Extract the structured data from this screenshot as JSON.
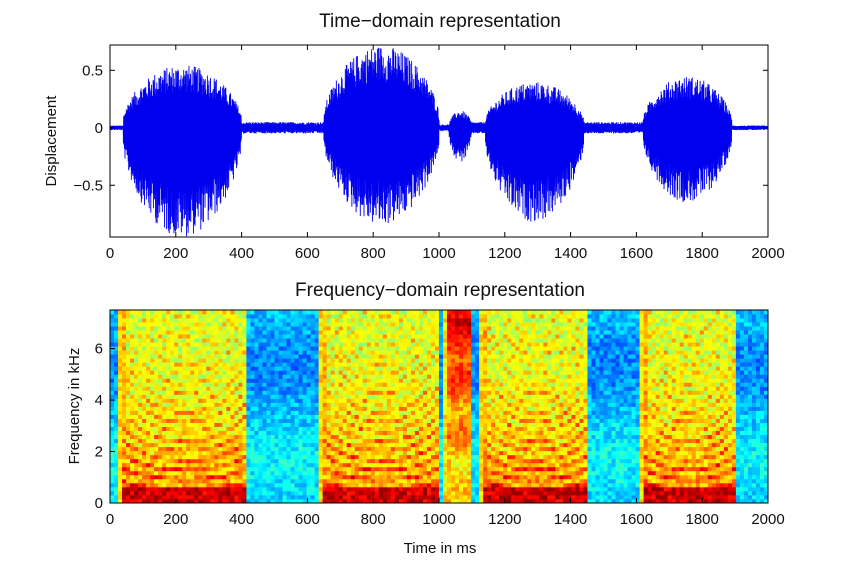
{
  "chart_data": [
    {
      "type": "line",
      "title": "Time−domain representation",
      "xlabel": "",
      "ylabel": "Displacement",
      "xlim": [
        0,
        2000
      ],
      "ylim": [
        -0.95,
        0.72
      ],
      "x_ticks": [
        "0",
        "200",
        "400",
        "600",
        "800",
        "1000",
        "1200",
        "1400",
        "1600",
        "1800",
        "2000"
      ],
      "y_ticks": [
        "0.5",
        "0",
        "−0.5"
      ],
      "series": [
        {
          "color": "#0000ee",
          "segments": [
            {
              "start": 0,
              "end": 40,
              "max": 0.02
            },
            {
              "start": 40,
              "end": 400,
              "max": 0.55,
              "min": -0.95
            },
            {
              "start": 400,
              "end": 650,
              "max": 0.05
            },
            {
              "start": 650,
              "end": 1000,
              "max": 0.72,
              "min": -0.85
            },
            {
              "start": 1000,
              "end": 1030,
              "max": 0.03
            },
            {
              "start": 1030,
              "end": 1100,
              "max": 0.15,
              "min": -0.3
            },
            {
              "start": 1100,
              "end": 1140,
              "max": 0.05
            },
            {
              "start": 1140,
              "end": 1440,
              "max": 0.4,
              "min": -0.82
            },
            {
              "start": 1440,
              "end": 1620,
              "max": 0.05
            },
            {
              "start": 1620,
              "end": 1890,
              "max": 0.45,
              "min": -0.65
            },
            {
              "start": 1890,
              "end": 2000,
              "max": 0.02
            }
          ]
        }
      ],
      "grid": false
    },
    {
      "type": "heatmap",
      "title": "Frequency−domain representation",
      "xlabel": "Time in ms",
      "ylabel": "Frequency in kHz",
      "xlim": [
        0,
        2000
      ],
      "ylim": [
        0,
        7.5
      ],
      "x_ticks": [
        "0",
        "200",
        "400",
        "600",
        "800",
        "1000",
        "1200",
        "1400",
        "1600",
        "1800",
        "2000"
      ],
      "y_ticks": [
        "0",
        "2",
        "4",
        "6"
      ],
      "colormap": "jet",
      "voiced_regions_ms": [
        [
          40,
          420
        ],
        [
          650,
          1000
        ],
        [
          1140,
          1450
        ],
        [
          1620,
          1900
        ]
      ],
      "fricative_regions_ms": [
        [
          1030,
          1100
        ]
      ],
      "grid": false
    }
  ]
}
